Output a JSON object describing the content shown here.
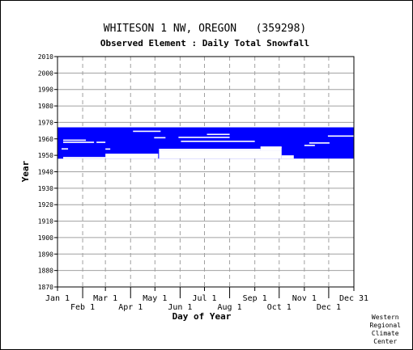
{
  "chart_data": {
    "type": "timeline",
    "title": "WHITESON 1 NW, OREGON   (359298)",
    "subtitle": "Observed Element : Daily Total Snowfall",
    "xlabel": "Day of Year",
    "ylabel": "Year",
    "x_range_day_of_year": [
      1,
      366
    ],
    "ylim": [
      1870,
      2010
    ],
    "y_ticks": [
      1870,
      1880,
      1890,
      1900,
      1910,
      1920,
      1930,
      1940,
      1950,
      1960,
      1970,
      1980,
      1990,
      2000,
      2010
    ],
    "x_ticks": [
      {
        "label": "Jan 1",
        "day": 1,
        "row": "upper"
      },
      {
        "label": "Feb 1",
        "day": 32,
        "row": "lower"
      },
      {
        "label": "Mar 1",
        "day": 60,
        "row": "upper"
      },
      {
        "label": "Apr 1",
        "day": 91,
        "row": "lower"
      },
      {
        "label": "May 1",
        "day": 121,
        "row": "upper"
      },
      {
        "label": "Jun 1",
        "day": 152,
        "row": "lower"
      },
      {
        "label": "Jul 1",
        "day": 182,
        "row": "upper"
      },
      {
        "label": "Aug 1",
        "day": 213,
        "row": "lower"
      },
      {
        "label": "Sep 1",
        "day": 244,
        "row": "upper"
      },
      {
        "label": "Oct 1",
        "day": 274,
        "row": "lower"
      },
      {
        "label": "Nov 1",
        "day": 305,
        "row": "upper"
      },
      {
        "label": "Dec 1",
        "day": 335,
        "row": "lower"
      },
      {
        "label": "Dec 31",
        "day": 366,
        "row": "upper"
      }
    ],
    "grid": true,
    "color": "#0000ff",
    "coverage_blocks": [
      {
        "start_year": 1948,
        "end_year": 1967,
        "start_day": 1,
        "end_day": 366
      },
      {
        "start_year": 1948,
        "end_year": 1949,
        "start_day": 1,
        "end_day": 8
      },
      {
        "start_year": 1949,
        "end_year": 1951,
        "start_day": 8,
        "end_day": 60
      },
      {
        "start_year": 1949,
        "end_year": 1953,
        "start_day": 60,
        "end_day": 126
      }
    ],
    "gaps": [
      {
        "start_year": 1948,
        "end_year": 1953,
        "start_day": 126,
        "end_day": 277
      },
      {
        "start_year": 1948,
        "end_year": 1949,
        "start_day": 8,
        "end_day": 60
      },
      {
        "start_year": 1948,
        "end_year": 1951,
        "start_day": 60,
        "end_day": 125
      },
      {
        "start_year": 1948,
        "end_year": 1950,
        "start_day": 277,
        "end_day": 292
      },
      {
        "start_year": 1953,
        "end_year": 1955,
        "start_day": 251,
        "end_day": 277
      },
      {
        "start_year": 1953,
        "end_year": 1954,
        "start_day": 126,
        "end_day": 251
      },
      {
        "start_year": 1957.5,
        "end_year": 1958.3,
        "start_day": 8,
        "end_day": 46
      },
      {
        "start_year": 1957.5,
        "end_year": 1958.3,
        "start_day": 49,
        "end_day": 60
      },
      {
        "start_year": 1953.5,
        "end_year": 1954.3,
        "start_day": 6,
        "end_day": 14
      },
      {
        "start_year": 1958.8,
        "end_year": 1959.6,
        "start_day": 8,
        "end_day": 36
      },
      {
        "start_year": 1960.3,
        "end_year": 1961.1,
        "start_day": 120,
        "end_day": 134
      },
      {
        "start_year": 1960.5,
        "end_year": 1961.3,
        "start_day": 150,
        "end_day": 213
      },
      {
        "start_year": 1962.3,
        "end_year": 1963.1,
        "start_day": 185,
        "end_day": 213
      },
      {
        "start_year": 1964.2,
        "end_year": 1965,
        "start_day": 94,
        "end_day": 128
      },
      {
        "start_year": 1961.3,
        "end_year": 1962.1,
        "start_day": 334,
        "end_day": 366
      },
      {
        "start_year": 1957.1,
        "end_year": 1957.9,
        "start_day": 311,
        "end_day": 336
      },
      {
        "start_year": 1958.1,
        "end_year": 1958.9,
        "start_day": 153,
        "end_day": 244
      },
      {
        "start_year": 1955.6,
        "end_year": 1956.4,
        "start_day": 305,
        "end_day": 318
      },
      {
        "start_year": 1954.6,
        "end_year": 1955.4,
        "start_day": 251,
        "end_day": 277
      },
      {
        "start_year": 1953.4,
        "end_year": 1954.2,
        "start_day": 60,
        "end_day": 66
      }
    ]
  },
  "credit": [
    "Western",
    "Regional",
    "Climate",
    "Center"
  ]
}
